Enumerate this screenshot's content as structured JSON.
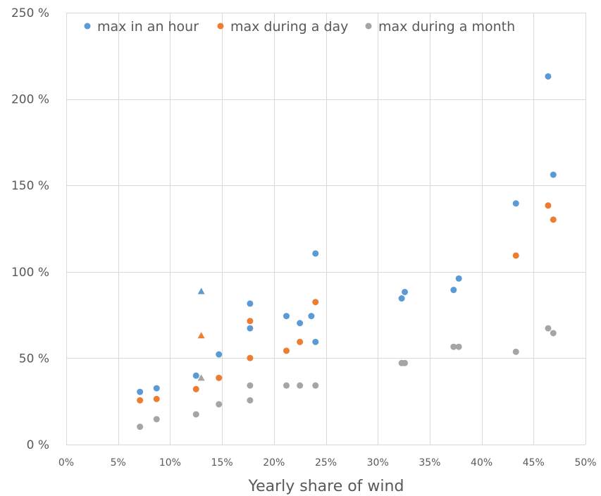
{
  "chart_data": {
    "type": "scatter",
    "title": "",
    "xlabel": "Yearly share of wind",
    "ylabel": "",
    "xlim": [
      0,
      50
    ],
    "ylim": [
      0,
      250
    ],
    "x_ticks": [
      "0%",
      "5%",
      "10%",
      "15%",
      "20%",
      "25%",
      "30%",
      "35%",
      "40%",
      "45%",
      "50%"
    ],
    "y_ticks": [
      "0 %",
      "50 %",
      "100 %",
      "150 %",
      "200 %",
      "250 %"
    ],
    "grid": true,
    "legend_position": "top",
    "series": [
      {
        "name": "max in an hour",
        "color": "#5b9bd5",
        "points": [
          {
            "x": 7.1,
            "y": 30.5
          },
          {
            "x": 8.7,
            "y": 32.6
          },
          {
            "x": 12.5,
            "y": 39.9
          },
          {
            "x": 13.0,
            "y": 88.7,
            "marker": "triangle"
          },
          {
            "x": 14.7,
            "y": 52.2
          },
          {
            "x": 17.7,
            "y": 67.3
          },
          {
            "x": 17.7,
            "y": 81.6
          },
          {
            "x": 21.2,
            "y": 74.4
          },
          {
            "x": 22.5,
            "y": 70.3
          },
          {
            "x": 23.6,
            "y": 74.4
          },
          {
            "x": 24.0,
            "y": 110.6
          },
          {
            "x": 24.0,
            "y": 59.4
          },
          {
            "x": 32.3,
            "y": 84.6
          },
          {
            "x": 32.6,
            "y": 88.3
          },
          {
            "x": 37.3,
            "y": 89.5
          },
          {
            "x": 37.8,
            "y": 96.1
          },
          {
            "x": 43.3,
            "y": 139.6
          },
          {
            "x": 46.4,
            "y": 213.1
          },
          {
            "x": 46.9,
            "y": 156.2
          }
        ]
      },
      {
        "name": "max during a day",
        "color": "#ed7d31",
        "points": [
          {
            "x": 7.1,
            "y": 25.6
          },
          {
            "x": 8.7,
            "y": 26.4
          },
          {
            "x": 12.5,
            "y": 32.1
          },
          {
            "x": 13.0,
            "y": 63.1,
            "marker": "triangle"
          },
          {
            "x": 14.7,
            "y": 38.6
          },
          {
            "x": 17.7,
            "y": 50.1
          },
          {
            "x": 17.7,
            "y": 71.5
          },
          {
            "x": 21.2,
            "y": 54.3
          },
          {
            "x": 22.5,
            "y": 59.4
          },
          {
            "x": 24.0,
            "y": 82.5
          },
          {
            "x": 43.3,
            "y": 109.4
          },
          {
            "x": 46.4,
            "y": 138.4
          },
          {
            "x": 46.9,
            "y": 130.2
          }
        ]
      },
      {
        "name": "max during a month",
        "color": "#a5a5a5",
        "points": [
          {
            "x": 7.1,
            "y": 10.3
          },
          {
            "x": 8.7,
            "y": 14.7
          },
          {
            "x": 12.5,
            "y": 17.5
          },
          {
            "x": 13.0,
            "y": 38.6,
            "marker": "triangle"
          },
          {
            "x": 14.7,
            "y": 23.3
          },
          {
            "x": 17.7,
            "y": 25.6
          },
          {
            "x": 17.7,
            "y": 34.2
          },
          {
            "x": 21.2,
            "y": 34.2
          },
          {
            "x": 22.5,
            "y": 34.2
          },
          {
            "x": 24.0,
            "y": 34.2
          },
          {
            "x": 32.3,
            "y": 47.2
          },
          {
            "x": 32.6,
            "y": 47.2
          },
          {
            "x": 37.3,
            "y": 56.6
          },
          {
            "x": 37.8,
            "y": 56.6
          },
          {
            "x": 43.3,
            "y": 53.7
          },
          {
            "x": 46.4,
            "y": 67.3
          },
          {
            "x": 46.9,
            "y": 64.5
          }
        ]
      }
    ]
  }
}
